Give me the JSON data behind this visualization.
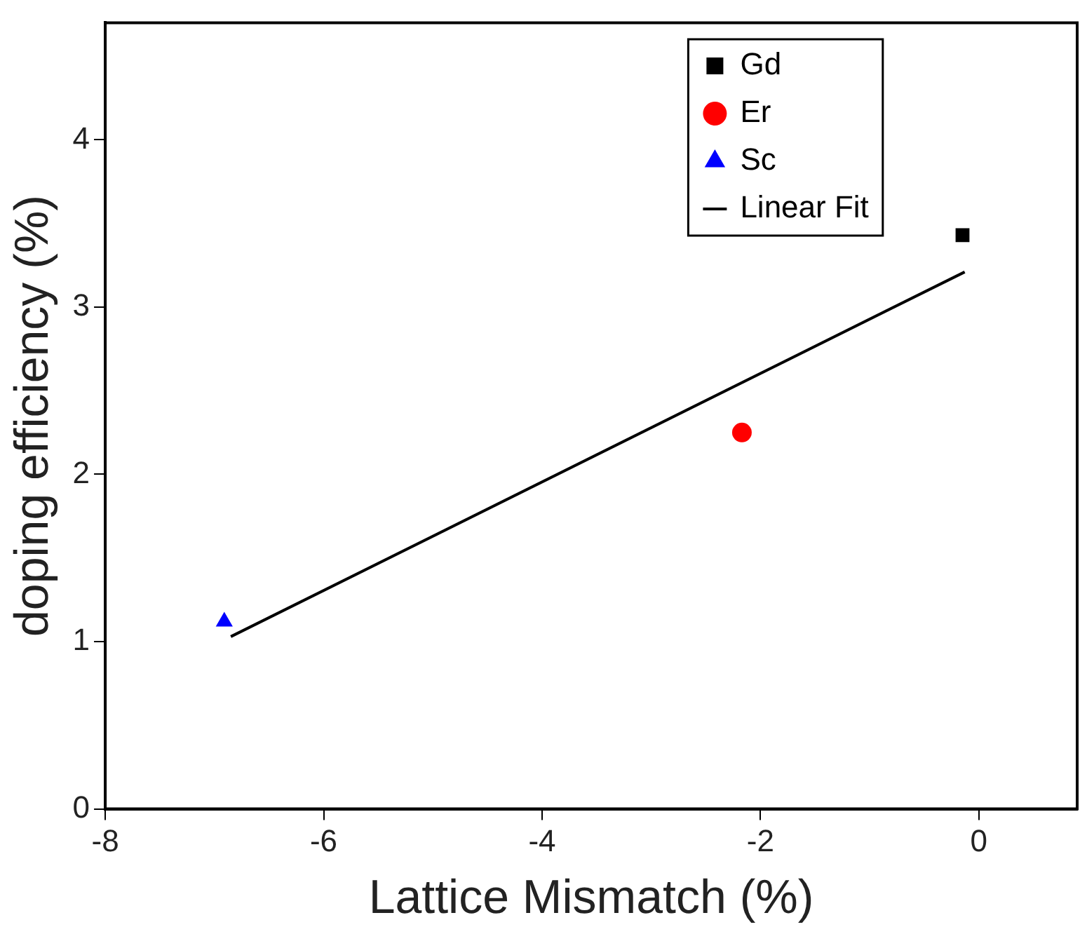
{
  "chart_data": {
    "type": "scatter",
    "xlabel": "Lattice Mismatch (%)",
    "ylabel": "doping efficiency (%)",
    "xlim": [
      -8,
      0.9
    ],
    "ylim": [
      0,
      4.7
    ],
    "xticks": [
      -8,
      -6,
      -4,
      -2,
      0
    ],
    "yticks": [
      0,
      1,
      2,
      3,
      4
    ],
    "grid": false,
    "legend": "top right",
    "series": [
      {
        "name": "Gd",
        "color": "#000000",
        "marker": "square",
        "x": [
          -0.15
        ],
        "values": [
          3.43
        ]
      },
      {
        "name": "Er",
        "color": "#ff0000",
        "marker": "circle",
        "x": [
          -2.17
        ],
        "values": [
          2.25
        ]
      },
      {
        "name": "Sc",
        "color": "#0000ff",
        "marker": "triangle",
        "x": [
          -6.91
        ],
        "values": [
          1.12
        ]
      },
      {
        "name": "Linear Fit",
        "type": "line",
        "color": "#000000",
        "marker": "none",
        "x": [
          -6.85,
          -0.13
        ],
        "values": [
          1.03,
          3.21
        ]
      }
    ]
  }
}
